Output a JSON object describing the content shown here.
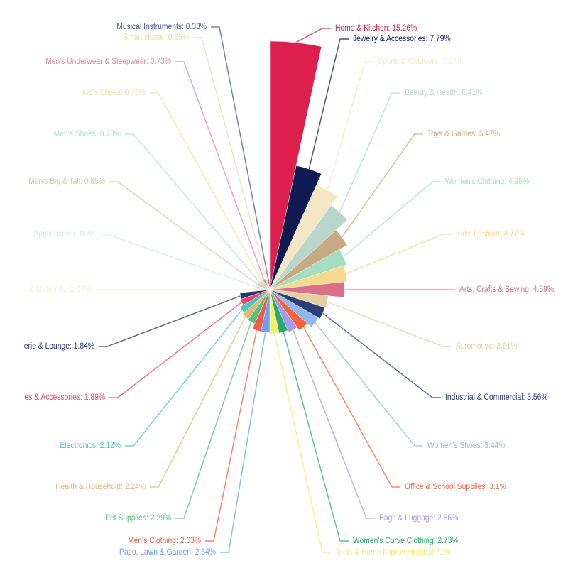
{
  "chart_data": {
    "type": "pie",
    "rose_type": "radius",
    "label_separator": ": ",
    "categories": [
      "Home & Kitchen",
      "Jewelry & Accessories",
      "Sports & Outdoors",
      "Beauty & Health",
      "Toys & Games",
      "Women's Clothing",
      "Kids' Fashion",
      "Arts, Crafts & Sewing",
      "Automotive",
      "Industrial & Commercial",
      "Women's Shoes",
      "Office & School Supplies",
      "Bags & Luggage",
      "Women's Curve Clothing",
      "Tools & Home Improvement",
      "Patio, Lawn & Garden",
      "Men's Clothing",
      "Pet Supplies",
      "Health & Household",
      "Electronics",
      "es & Accessories",
      "erie & Lounge",
      "& Maternity",
      "Appliances",
      "Men's Big & Tall",
      "Men's Shoes",
      "Kid's Shoes",
      "Men's Underwear & Sleepwear",
      "Smart Home",
      "Musical Instruments"
    ],
    "values": [
      15.26,
      7.79,
      7.07,
      6.41,
      5.47,
      4.95,
      4.77,
      4.59,
      3.61,
      3.56,
      3.44,
      3.1,
      2.86,
      2.73,
      2.71,
      2.64,
      2.63,
      2.29,
      2.24,
      2.12,
      1.89,
      1.84,
      1.04,
      0.89,
      0.85,
      0.78,
      0.76,
      0.73,
      0.65,
      0.33
    ],
    "value_labels": [
      "15.26%",
      "7.79%",
      "7.07%",
      "6.41%",
      "5.47%",
      "4.95%",
      "4.77%",
      "4.59%",
      "3.61%",
      "3.56%",
      "3.44%",
      "3.1%",
      "2.86%",
      "2.73%",
      "2.71%",
      "2.64%",
      "2.63%",
      "2.29%",
      "2.24%",
      "2.12%",
      "1.89%",
      "1.84%",
      "1.04%",
      "0.89%",
      "0.85%",
      "0.78%",
      "0.76%",
      "0.73%",
      "0.65%",
      "0.33%"
    ],
    "colors": [
      "#dc1f4d",
      "#0d1b52",
      "#f5e6c4",
      "#b9d6cc",
      "#c8aa82",
      "#a6dec4",
      "#f4d98e",
      "#d9708a",
      "#e6cf9e",
      "#2a3f7a",
      "#8cb8ec",
      "#f5623a",
      "#a59af0",
      "#2ea86a",
      "#f2ef6a",
      "#6f9ff0",
      "#f25b4a",
      "#5cc07a",
      "#e0b87a",
      "#4cc4c0",
      "#e8466e",
      "#253570",
      "#fbeccf",
      "#d6e8e0",
      "#d8c4a6",
      "#b2e0cc",
      "#f6dd9c",
      "#e0879f",
      "#ead8b0",
      "#4a5a90"
    ]
  }
}
